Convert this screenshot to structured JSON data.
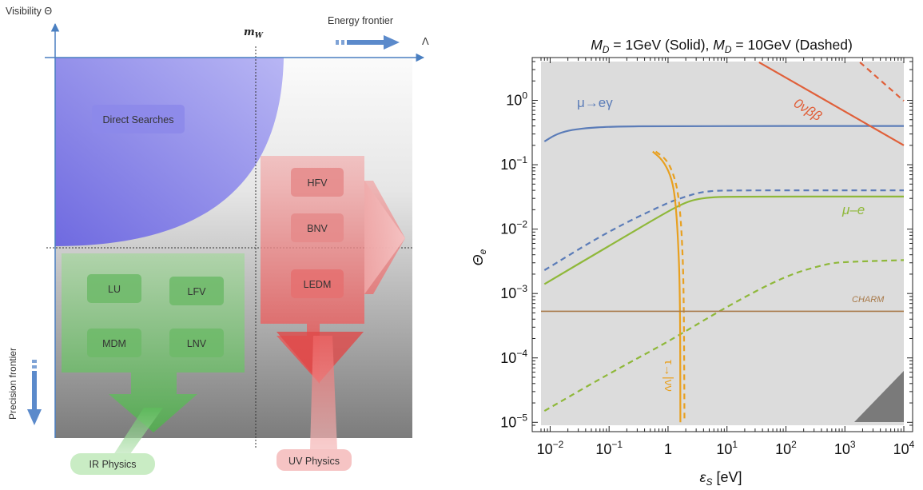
{
  "left_diagram": {
    "y_axis_label": "Visibility Θ",
    "x_axis_label": "Energy frontier",
    "lambda_label": "Λ",
    "mw_label": "m",
    "mw_sub": "W",
    "precision_label": "Precision frontier",
    "boxes": {
      "direct": "Direct Searches",
      "hfv": "HFV",
      "bnv": "BNV",
      "ledm": "LEDM",
      "lu": "LU",
      "lfv": "LFV",
      "mdm": "MDM",
      "lnv": "LNV"
    },
    "tags": {
      "ir": "IR Physics",
      "uv": "UV Physics"
    }
  },
  "chart_data": {
    "type": "line",
    "title": "M_D = 1GeV (Solid), M_D = 10GeV (Dashed)",
    "title_parts": {
      "m1": "M",
      "d1": "D",
      "t1": " = 1GeV (Solid), ",
      "m2": "M",
      "d2": "D",
      "t2": " = 10GeV (Dashed)"
    },
    "xlabel": "ε_S [eV]",
    "xlabel_parts": {
      "sym": "ε",
      "sub": "S",
      "unit": " [eV]"
    },
    "ylabel": "Θ_e",
    "ylabel_parts": {
      "sym": "Θ",
      "sub": "e"
    },
    "x_scale": "log",
    "y_scale": "log",
    "xlim": [
      0.007,
      10000
    ],
    "ylim": [
      9e-06,
      4
    ],
    "x_ticks": [
      {
        "value": 0.01,
        "base": "10",
        "exp": "−2"
      },
      {
        "value": 0.1,
        "base": "10",
        "exp": "−1"
      },
      {
        "value": 1,
        "base": "1",
        "exp": ""
      },
      {
        "value": 10,
        "base": "10",
        "exp": "1"
      },
      {
        "value": 100,
        "base": "10",
        "exp": "2"
      },
      {
        "value": 1000,
        "base": "10",
        "exp": "3"
      },
      {
        "value": 10000,
        "base": "10",
        "exp": "4"
      }
    ],
    "y_ticks": [
      {
        "value": 1e-05,
        "base": "10",
        "exp": "−5"
      },
      {
        "value": 0.0001,
        "base": "10",
        "exp": "−4"
      },
      {
        "value": 0.001,
        "base": "10",
        "exp": "−3"
      },
      {
        "value": 0.01,
        "base": "10",
        "exp": "−2"
      },
      {
        "value": 0.1,
        "base": "10",
        "exp": "−1"
      },
      {
        "value": 1,
        "base": "10",
        "exp": "0"
      }
    ],
    "series": [
      {
        "name": "μ→eγ",
        "style": "solid",
        "color": "#5b7cb8",
        "points": [
          [
            0.008,
            0.23
          ],
          [
            0.012,
            0.29
          ],
          [
            0.02,
            0.34
          ],
          [
            0.04,
            0.37
          ],
          [
            0.1,
            0.39
          ],
          [
            1,
            0.4
          ],
          [
            10000,
            0.4
          ]
        ]
      },
      {
        "name": "μ→eγ",
        "style": "dashed",
        "color": "#5b7cb8",
        "points": [
          [
            0.008,
            0.0023
          ],
          [
            0.1,
            0.0094
          ],
          [
            1,
            0.026
          ],
          [
            2,
            0.032
          ],
          [
            3,
            0.036
          ],
          [
            5,
            0.039
          ],
          [
            10,
            0.04
          ],
          [
            10000,
            0.04
          ]
        ]
      },
      {
        "name": "μ–e",
        "style": "solid",
        "color": "#8fb83a",
        "points": [
          [
            0.008,
            0.0014
          ],
          [
            0.1,
            0.0055
          ],
          [
            1,
            0.019
          ],
          [
            2,
            0.026
          ],
          [
            3,
            0.029
          ],
          [
            5,
            0.031
          ],
          [
            10,
            0.032
          ],
          [
            10000,
            0.032
          ]
        ]
      },
      {
        "name": "μ–e",
        "style": "dashed",
        "color": "#8fb83a",
        "points": [
          [
            0.008,
            1.5e-05
          ],
          [
            0.1,
            5.7e-05
          ],
          [
            1,
            0.000178
          ],
          [
            10,
            0.00063
          ],
          [
            100,
            0.0019
          ],
          [
            500,
            0.0029
          ],
          [
            1000,
            0.0031
          ],
          [
            10000,
            0.0033
          ]
        ]
      },
      {
        "name": "0νββ",
        "style": "solid",
        "color": "#e0603a",
        "points": [
          [
            35,
            3.9
          ],
          [
            10000,
            0.2
          ]
        ]
      },
      {
        "name": "0νββ",
        "style": "dashed",
        "color": "#e0603a",
        "points": [
          [
            1800,
            3.9
          ],
          [
            10000,
            0.98
          ]
        ]
      },
      {
        "name": "τ→|νν",
        "style": "solid",
        "color": "#e8a020",
        "points": [
          [
            0.55,
            0.16
          ],
          [
            0.8,
            0.12
          ],
          [
            1.1,
            0.07
          ],
          [
            1.3,
            0.035
          ],
          [
            1.45,
            0.01
          ],
          [
            1.6,
            0.0012
          ],
          [
            1.62,
            1e-05
          ]
        ]
      },
      {
        "name": "τ→|νν",
        "style": "dashed",
        "color": "#e8a020",
        "points": [
          [
            0.62,
            0.16
          ],
          [
            0.95,
            0.12
          ],
          [
            1.25,
            0.07
          ],
          [
            1.5,
            0.035
          ],
          [
            1.7,
            0.01
          ],
          [
            1.85,
            0.0012
          ],
          [
            1.9,
            1e-05
          ]
        ]
      },
      {
        "name": "CHARM",
        "style": "solid",
        "color": "#a87a4a",
        "points": [
          [
            0.007,
            0.00053
          ],
          [
            10000,
            0.00053
          ]
        ]
      }
    ],
    "annotations": {
      "mueg": "μ→eγ",
      "mue": "μ–e",
      "onbb": "0νββ",
      "charm": "CHARM",
      "tau": "τ→|νν"
    }
  }
}
